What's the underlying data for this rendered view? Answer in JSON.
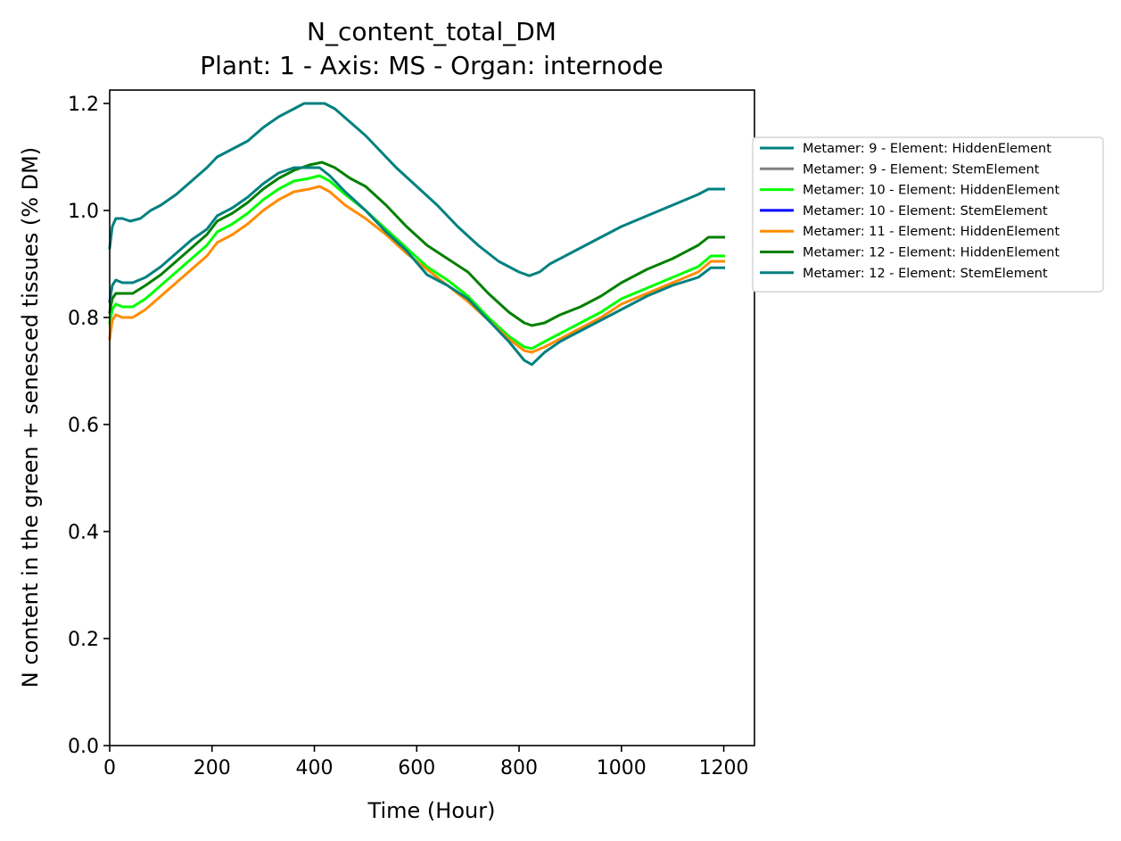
{
  "chart_data": {
    "type": "line",
    "title": "N_content_total_DM",
    "subtitle": "Plant: 1 - Axis: MS - Organ: internode",
    "xlabel": "Time (Hour)",
    "ylabel": "N content in the green + senesced tissues (% DM)",
    "xlim": [
      0,
      1260
    ],
    "ylim": [
      0,
      1.225
    ],
    "xticks": [
      0,
      200,
      400,
      600,
      800,
      1000,
      1200
    ],
    "xtick_labels": [
      "0",
      "200",
      "400",
      "600",
      "800",
      "1000",
      "1200"
    ],
    "yticks": [
      0.0,
      0.2,
      0.4,
      0.6,
      0.8,
      1.0,
      1.2
    ],
    "ytick_labels": [
      "0.0",
      "0.2",
      "0.4",
      "0.6",
      "0.8",
      "1.0",
      "1.2"
    ],
    "grid": false,
    "legend_position": "outside-right",
    "series": [
      {
        "name": "Metamer: 9 - Element: HiddenElement",
        "color": "#008080",
        "points": [
          [
            0,
            0.93
          ],
          [
            5,
            0.97
          ],
          [
            12,
            0.985
          ],
          [
            25,
            0.985
          ],
          [
            40,
            0.98
          ],
          [
            60,
            0.985
          ],
          [
            80,
            1.0
          ],
          [
            100,
            1.01
          ],
          [
            130,
            1.03
          ],
          [
            160,
            1.055
          ],
          [
            190,
            1.08
          ],
          [
            210,
            1.1
          ],
          [
            230,
            1.11
          ],
          [
            250,
            1.12
          ],
          [
            270,
            1.13
          ],
          [
            300,
            1.155
          ],
          [
            330,
            1.175
          ],
          [
            360,
            1.19
          ],
          [
            380,
            1.2
          ],
          [
            400,
            1.2
          ],
          [
            420,
            1.2
          ],
          [
            440,
            1.19
          ],
          [
            470,
            1.165
          ],
          [
            500,
            1.14
          ],
          [
            530,
            1.11
          ],
          [
            560,
            1.08
          ],
          [
            600,
            1.045
          ],
          [
            640,
            1.01
          ],
          [
            680,
            0.97
          ],
          [
            720,
            0.935
          ],
          [
            760,
            0.905
          ],
          [
            800,
            0.885
          ],
          [
            820,
            0.878
          ],
          [
            840,
            0.885
          ],
          [
            860,
            0.9
          ],
          [
            900,
            0.92
          ],
          [
            950,
            0.945
          ],
          [
            1000,
            0.97
          ],
          [
            1050,
            0.99
          ],
          [
            1100,
            1.01
          ],
          [
            1150,
            1.03
          ],
          [
            1170,
            1.04
          ],
          [
            1200,
            1.04
          ]
        ]
      },
      {
        "name": "Metamer: 9 - Element: StemElement",
        "color": "#808080",
        "points": []
      },
      {
        "name": "Metamer: 10 - Element: HiddenElement",
        "color": "#00ff00",
        "points": [
          [
            0,
            0.79
          ],
          [
            5,
            0.815
          ],
          [
            12,
            0.825
          ],
          [
            25,
            0.82
          ],
          [
            45,
            0.82
          ],
          [
            70,
            0.835
          ],
          [
            100,
            0.86
          ],
          [
            130,
            0.885
          ],
          [
            160,
            0.91
          ],
          [
            190,
            0.935
          ],
          [
            210,
            0.96
          ],
          [
            240,
            0.975
          ],
          [
            270,
            0.995
          ],
          [
            300,
            1.02
          ],
          [
            330,
            1.04
          ],
          [
            360,
            1.055
          ],
          [
            390,
            1.06
          ],
          [
            410,
            1.065
          ],
          [
            430,
            1.055
          ],
          [
            460,
            1.03
          ],
          [
            500,
            1.0
          ],
          [
            540,
            0.965
          ],
          [
            580,
            0.93
          ],
          [
            620,
            0.895
          ],
          [
            660,
            0.87
          ],
          [
            700,
            0.84
          ],
          [
            740,
            0.8
          ],
          [
            780,
            0.765
          ],
          [
            810,
            0.745
          ],
          [
            825,
            0.742
          ],
          [
            850,
            0.755
          ],
          [
            880,
            0.77
          ],
          [
            920,
            0.79
          ],
          [
            960,
            0.81
          ],
          [
            1000,
            0.835
          ],
          [
            1050,
            0.855
          ],
          [
            1100,
            0.875
          ],
          [
            1150,
            0.895
          ],
          [
            1175,
            0.915
          ],
          [
            1200,
            0.915
          ]
        ]
      },
      {
        "name": "Metamer: 10 - Element: StemElement",
        "color": "#0000ff",
        "points": []
      },
      {
        "name": "Metamer: 11 - Element: HiddenElement",
        "color": "#ff8c00",
        "points": [
          [
            0,
            0.76
          ],
          [
            5,
            0.795
          ],
          [
            12,
            0.805
          ],
          [
            25,
            0.8
          ],
          [
            45,
            0.8
          ],
          [
            70,
            0.815
          ],
          [
            100,
            0.84
          ],
          [
            130,
            0.865
          ],
          [
            160,
            0.89
          ],
          [
            190,
            0.915
          ],
          [
            210,
            0.94
          ],
          [
            240,
            0.955
          ],
          [
            270,
            0.975
          ],
          [
            300,
            1.0
          ],
          [
            330,
            1.02
          ],
          [
            360,
            1.035
          ],
          [
            390,
            1.04
          ],
          [
            410,
            1.045
          ],
          [
            430,
            1.035
          ],
          [
            460,
            1.01
          ],
          [
            500,
            0.985
          ],
          [
            540,
            0.955
          ],
          [
            580,
            0.92
          ],
          [
            620,
            0.89
          ],
          [
            660,
            0.86
          ],
          [
            700,
            0.83
          ],
          [
            740,
            0.795
          ],
          [
            780,
            0.76
          ],
          [
            810,
            0.738
          ],
          [
            825,
            0.735
          ],
          [
            850,
            0.745
          ],
          [
            880,
            0.76
          ],
          [
            920,
            0.78
          ],
          [
            960,
            0.8
          ],
          [
            1000,
            0.825
          ],
          [
            1050,
            0.845
          ],
          [
            1100,
            0.865
          ],
          [
            1150,
            0.885
          ],
          [
            1175,
            0.905
          ],
          [
            1200,
            0.905
          ]
        ]
      },
      {
        "name": "Metamer: 12 - Element: HiddenElement",
        "color": "#008000",
        "points": [
          [
            0,
            0.81
          ],
          [
            5,
            0.835
          ],
          [
            12,
            0.845
          ],
          [
            25,
            0.845
          ],
          [
            45,
            0.845
          ],
          [
            70,
            0.86
          ],
          [
            100,
            0.88
          ],
          [
            130,
            0.905
          ],
          [
            160,
            0.93
          ],
          [
            190,
            0.955
          ],
          [
            210,
            0.98
          ],
          [
            240,
            0.995
          ],
          [
            270,
            1.015
          ],
          [
            300,
            1.04
          ],
          [
            330,
            1.06
          ],
          [
            360,
            1.075
          ],
          [
            390,
            1.085
          ],
          [
            415,
            1.09
          ],
          [
            440,
            1.08
          ],
          [
            470,
            1.06
          ],
          [
            500,
            1.045
          ],
          [
            540,
            1.01
          ],
          [
            580,
            0.97
          ],
          [
            620,
            0.935
          ],
          [
            660,
            0.91
          ],
          [
            700,
            0.885
          ],
          [
            740,
            0.845
          ],
          [
            780,
            0.81
          ],
          [
            810,
            0.79
          ],
          [
            825,
            0.785
          ],
          [
            850,
            0.79
          ],
          [
            880,
            0.805
          ],
          [
            920,
            0.82
          ],
          [
            960,
            0.84
          ],
          [
            1000,
            0.865
          ],
          [
            1050,
            0.89
          ],
          [
            1100,
            0.91
          ],
          [
            1150,
            0.935
          ],
          [
            1170,
            0.95
          ],
          [
            1200,
            0.95
          ]
        ]
      },
      {
        "name": "Metamer: 12 - Element: StemElement",
        "color": "#008080",
        "points": [
          [
            0,
            0.83
          ],
          [
            5,
            0.86
          ],
          [
            12,
            0.87
          ],
          [
            25,
            0.865
          ],
          [
            45,
            0.865
          ],
          [
            70,
            0.875
          ],
          [
            100,
            0.895
          ],
          [
            130,
            0.92
          ],
          [
            160,
            0.945
          ],
          [
            190,
            0.965
          ],
          [
            210,
            0.99
          ],
          [
            240,
            1.005
          ],
          [
            270,
            1.025
          ],
          [
            300,
            1.05
          ],
          [
            330,
            1.07
          ],
          [
            360,
            1.08
          ],
          [
            390,
            1.08
          ],
          [
            410,
            1.08
          ],
          [
            430,
            1.065
          ],
          [
            460,
            1.035
          ],
          [
            500,
            1.0
          ],
          [
            540,
            0.96
          ],
          [
            580,
            0.925
          ],
          [
            620,
            0.88
          ],
          [
            660,
            0.86
          ],
          [
            700,
            0.835
          ],
          [
            740,
            0.795
          ],
          [
            780,
            0.755
          ],
          [
            810,
            0.72
          ],
          [
            825,
            0.712
          ],
          [
            850,
            0.735
          ],
          [
            880,
            0.755
          ],
          [
            920,
            0.775
          ],
          [
            960,
            0.795
          ],
          [
            1000,
            0.815
          ],
          [
            1050,
            0.84
          ],
          [
            1100,
            0.86
          ],
          [
            1150,
            0.875
          ],
          [
            1175,
            0.893
          ],
          [
            1200,
            0.893
          ]
        ]
      }
    ]
  }
}
